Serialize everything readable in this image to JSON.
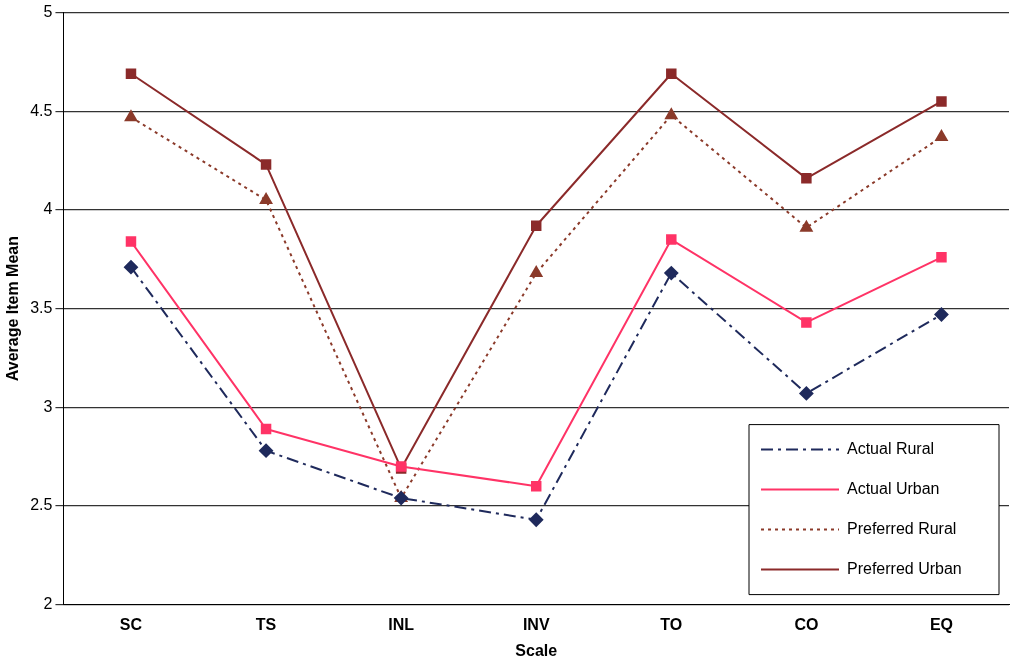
{
  "chart_data": {
    "type": "line",
    "xlabel": "Scale",
    "ylabel": "Average Item Mean",
    "categories": [
      "SC",
      "TS",
      "INL",
      "INV",
      "TO",
      "CO",
      "EQ"
    ],
    "ylim": [
      2,
      5
    ],
    "yticks": [
      2,
      2.5,
      3,
      3.5,
      4,
      4.5,
      5
    ],
    "grid": "y",
    "legend": "bottom right",
    "series": [
      {
        "name": "Actual Rural",
        "color": "#1f2a5c",
        "marker": "diamond",
        "line_style": "dashed",
        "values": [
          3.71,
          2.78,
          2.54,
          2.43,
          3.68,
          3.07,
          3.47
        ]
      },
      {
        "name": "Actual Urban",
        "color": "#ff3366",
        "marker": "square",
        "line_style": "solid",
        "values": [
          3.84,
          2.89,
          2.7,
          2.6,
          3.85,
          3.43,
          3.76
        ]
      },
      {
        "name": "Preferred Rural",
        "color": "#8b3a2a",
        "marker": "triangle",
        "line_style": "dotted",
        "values": [
          4.47,
          4.05,
          2.54,
          3.68,
          4.48,
          3.91,
          4.37
        ]
      },
      {
        "name": "Preferred Urban",
        "color": "#8b2a2a",
        "marker": "square",
        "line_style": "solid",
        "values": [
          4.69,
          4.23,
          2.69,
          3.92,
          4.69,
          4.16,
          4.55
        ]
      }
    ]
  }
}
